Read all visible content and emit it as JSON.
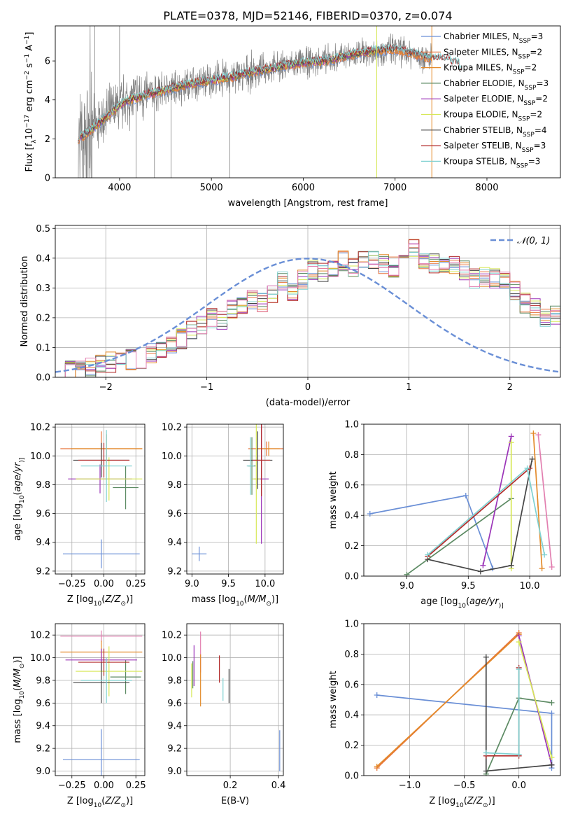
{
  "title": "PLATE=0378, MJD=52146, FIBERID=0370, z=0.074",
  "colors": {
    "Chabrier MILES": "#6a8fd6",
    "Salpeter MILES": "#e8743b",
    "Kroupa MILES": "#e38a2a",
    "Chabrier ELODIE": "#5c8a63",
    "Salpeter ELODIE": "#9b34b8",
    "Kroupa ELODIE": "#d7e857",
    "Chabrier STELIB": "#454545",
    "Salpeter STELIB": "#b22b2b",
    "Kroupa STELIB": "#7fd1d1",
    "data": "#808080",
    "pink": "#e27fb0"
  },
  "chart_data": [
    {
      "id": "spectrum",
      "type": "line",
      "title": "PLATE=0378, MJD=52146, FIBERID=0370, z=0.074",
      "xlabel": "wavelength [Angstrom, rest frame]",
      "ylabel_parts": [
        "Flux [f",
        "λ",
        "10",
        "−17",
        " erg cm",
        "−2",
        " s",
        "−1",
        " A",
        "−1",
        "]"
      ],
      "xlim": [
        3300,
        8800
      ],
      "ylim": [
        0,
        7.8
      ],
      "xticks": [
        4000,
        5000,
        6000,
        7000,
        8000
      ],
      "yticks": [
        0,
        2,
        4,
        6
      ],
      "legend": [
        {
          "name": "Chabrier MILES",
          "sub": "SSP",
          "n": "3"
        },
        {
          "name": "Salpeter MILES",
          "sub": "SSP",
          "n": "2"
        },
        {
          "name": "Kroupa MILES",
          "sub": "SSP",
          "n": "2"
        },
        {
          "name": "Chabrier ELODIE",
          "sub": "SSP",
          "n": "3"
        },
        {
          "name": "Salpeter ELODIE",
          "sub": "SSP",
          "n": "2"
        },
        {
          "name": "Kroupa ELODIE",
          "sub": "SSP",
          "n": "2"
        },
        {
          "name": "Chabrier STELIB",
          "sub": "SSP",
          "n": "4"
        },
        {
          "name": "Salpeter STELIB",
          "sub": "SSP",
          "n": "3"
        },
        {
          "name": "Kroupa STELIB",
          "sub": "SSP",
          "n": "3"
        }
      ],
      "continuum": [
        [
          3550,
          2.0
        ],
        [
          3650,
          2.3
        ],
        [
          3750,
          2.7
        ],
        [
          3850,
          3.1
        ],
        [
          3950,
          3.5
        ],
        [
          4050,
          3.9
        ],
        [
          4250,
          4.2
        ],
        [
          4500,
          4.5
        ],
        [
          4750,
          4.8
        ],
        [
          5000,
          5.0
        ],
        [
          5250,
          5.2
        ],
        [
          5500,
          5.5
        ],
        [
          5750,
          5.7
        ],
        [
          6000,
          5.9
        ],
        [
          6250,
          6.0
        ],
        [
          6500,
          6.3
        ],
        [
          6750,
          6.5
        ],
        [
          7000,
          6.6
        ],
        [
          7250,
          6.3
        ],
        [
          7400,
          6.1
        ]
      ],
      "model_end": [
        [
          7400,
          6.1
        ],
        [
          7600,
          5.9
        ],
        [
          7700,
          5.5
        ],
        [
          7720,
          4.9
        ]
      ]
    },
    {
      "id": "residuals",
      "type": "histogram",
      "xlabel": "(data-model)/error",
      "ylabel": "Normed distribution",
      "xlim": [
        -2.5,
        2.5
      ],
      "ylim": [
        0,
        0.51
      ],
      "xticks": [
        -2,
        -1,
        0,
        1,
        2
      ],
      "yticks": [
        0.0,
        0.1,
        0.2,
        0.3,
        0.4,
        0.5
      ],
      "legend": [
        "𝒩(0, 1)"
      ],
      "bin_width": 0.1,
      "bin_start": -2.5,
      "base": [
        0.02,
        0.02,
        0.03,
        0.03,
        0.04,
        0.05,
        0.05,
        0.06,
        0.06,
        0.08,
        0.09,
        0.11,
        0.13,
        0.16,
        0.17,
        0.2,
        0.19,
        0.23,
        0.24,
        0.26,
        0.25,
        0.28,
        0.32,
        0.29,
        0.33,
        0.36,
        0.35,
        0.36,
        0.39,
        0.37,
        0.39,
        0.4,
        0.38,
        0.37,
        0.38,
        0.43,
        0.39,
        0.38,
        0.37,
        0.38,
        0.36,
        0.33,
        0.34,
        0.33,
        0.32,
        0.29,
        0.25,
        0.23,
        0.2,
        0.21,
        0.18,
        0.16,
        0.15,
        0.14,
        0.12,
        0.11,
        0.09,
        0.08,
        0.07,
        0.07,
        0.06,
        0.05,
        0.05,
        0.04,
        0.04,
        0.03,
        0.03,
        0.02,
        0.02,
        0.02
      ]
    },
    {
      "id": "age-vs-Z",
      "type": "errorbar",
      "xlabel_parts": [
        "Z [log",
        "10",
        "(",
        "Z/Z",
        "⊙",
        ")]"
      ],
      "ylabel_parts": [
        "age  [log",
        "10",
        "(",
        "age/yr",
        ")]"
      ],
      "xlim": [
        -0.38,
        0.32
      ],
      "ylim": [
        9.18,
        10.22
      ],
      "xticks": [
        -0.25,
        0.0,
        0.25
      ],
      "xticklabels": [
        "−0.25",
        "0.00",
        "0.25"
      ],
      "yticks": [
        9.2,
        9.4,
        9.6,
        9.8,
        10.0,
        10.2
      ],
      "points": [
        {
          "c": "Chabrier MILES",
          "x": -0.02,
          "y": 9.32,
          "xerr": 0.3,
          "yerr": 0.1
        },
        {
          "c": "Salpeter MILES",
          "x": -0.02,
          "y": 10.05,
          "xerr": 0.32,
          "yerr": 0.12
        },
        {
          "c": "Kroupa MILES",
          "x": 0.02,
          "y": 10.05,
          "xerr": 0.28,
          "yerr": 0.1
        },
        {
          "c": "Chabrier ELODIE",
          "x": 0.17,
          "y": 9.78,
          "xerr": 0.1,
          "yerr": 0.15
        },
        {
          "c": "Salpeter ELODIE",
          "x": -0.03,
          "y": 9.84,
          "xerr": 0.25,
          "yerr": 0.1
        },
        {
          "c": "Kroupa ELODIE",
          "x": 0.04,
          "y": 9.84,
          "xerr": 0.26,
          "yerr": 0.15
        },
        {
          "c": "Chabrier STELIB",
          "x": -0.02,
          "y": 9.97,
          "xerr": 0.22,
          "yerr": 0.12
        },
        {
          "c": "Salpeter STELIB",
          "x": 0.0,
          "y": 9.97,
          "xerr": 0.2,
          "yerr": 0.12
        },
        {
          "c": "Kroupa STELIB",
          "x": 0.02,
          "y": 9.93,
          "xerr": 0.2,
          "yerr": 0.25
        }
      ]
    },
    {
      "id": "age-vs-mass",
      "type": "errorbar",
      "xlabel_parts": [
        "mass [log",
        "10",
        "(",
        "M/M",
        "⊙",
        ")]"
      ],
      "ylabel": "",
      "xlim": [
        8.93,
        10.25
      ],
      "ylim": [
        9.18,
        10.22
      ],
      "xticks": [
        9.0,
        9.5,
        10.0
      ],
      "xticklabels": [
        "9.0",
        "9.5",
        "10.0"
      ],
      "yticks": [
        9.2,
        9.4,
        9.6,
        9.8,
        10.0,
        10.2
      ],
      "points": [
        {
          "c": "Chabrier MILES",
          "x": 9.1,
          "y": 9.32,
          "xerr": 0.1,
          "yerr": 0.05
        },
        {
          "c": "Salpeter MILES",
          "x": 10.02,
          "y": 10.05,
          "xerr": 0.25,
          "yerr": 0.05
        },
        {
          "c": "Kroupa MILES",
          "x": 10.05,
          "y": 10.05,
          "xerr": 0.15,
          "yerr": 0.05
        },
        {
          "c": "Chabrier ELODIE",
          "x": 9.82,
          "y": 9.93,
          "xerr": 0.05,
          "yerr": 0.2
        },
        {
          "c": "Salpeter ELODIE",
          "x": 9.95,
          "y": 9.84,
          "xerr": 0.1,
          "yerr": 0.45
        },
        {
          "c": "Kroupa ELODIE",
          "x": 9.88,
          "y": 9.84,
          "xerr": 0.05,
          "yerr": 0.45
        },
        {
          "c": "Chabrier STELIB",
          "x": 9.9,
          "y": 9.97,
          "xerr": 0.2,
          "yerr": 0.2
        },
        {
          "c": "Salpeter STELIB",
          "x": 9.95,
          "y": 9.97,
          "xerr": 0.12,
          "yerr": 0.25
        },
        {
          "c": "Kroupa STELIB",
          "x": 9.8,
          "y": 9.93,
          "xerr": 0.05,
          "yerr": 0.2
        }
      ]
    },
    {
      "id": "massweight-vs-age",
      "type": "line",
      "xlabel_parts": [
        "age  [log",
        "10",
        "(",
        "age/yr",
        ")]"
      ],
      "ylabel": "mass weight",
      "xlim": [
        8.65,
        10.25
      ],
      "ylim": [
        0,
        1
      ],
      "xticks": [
        9.0,
        9.5,
        10.0
      ],
      "xticklabels": [
        "9.0",
        "9.5",
        "10.0"
      ],
      "yticks": [
        0.0,
        0.2,
        0.4,
        0.6,
        0.8,
        1.0
      ],
      "series": [
        {
          "c": "Chabrier MILES",
          "x": [
            8.7,
            9.48,
            9.7
          ],
          "y": [
            0.41,
            0.53,
            0.05
          ]
        },
        {
          "c": "Kroupa MILES",
          "x": [
            10.03,
            10.1
          ],
          "y": [
            0.94,
            0.05
          ]
        },
        {
          "c": "pink",
          "x": [
            10.07,
            10.18
          ],
          "y": [
            0.93,
            0.06
          ]
        },
        {
          "c": "Chabrier ELODIE",
          "x": [
            9.0,
            9.85
          ],
          "y": [
            0.01,
            0.51
          ]
        },
        {
          "c": "Salpeter ELODIE",
          "x": [
            9.62,
            9.85
          ],
          "y": [
            0.07,
            0.92
          ]
        },
        {
          "c": "Kroupa ELODIE",
          "x": [
            9.85,
            9.85
          ],
          "y": [
            0.88,
            0.05
          ]
        },
        {
          "c": "Chabrier STELIB",
          "x": [
            9.17,
            9.6,
            9.85,
            10.02
          ],
          "y": [
            0.11,
            0.03,
            0.07,
            0.77
          ]
        },
        {
          "c": "Salpeter STELIB",
          "x": [
            9.17,
            10.0
          ],
          "y": [
            0.13,
            0.71
          ]
        },
        {
          "c": "Kroupa STELIB",
          "x": [
            9.17,
            9.98,
            10.12
          ],
          "y": [
            0.14,
            0.71,
            0.14
          ]
        }
      ]
    },
    {
      "id": "mass-vs-Z",
      "type": "errorbar",
      "xlabel_parts": [
        "Z [log",
        "10",
        "(",
        "Z/Z",
        "⊙",
        ")]"
      ],
      "ylabel_parts": [
        "mass [log",
        "10",
        "(",
        "M/M",
        "⊙",
        ")]"
      ],
      "xlim": [
        -0.38,
        0.32
      ],
      "ylim": [
        8.96,
        10.3
      ],
      "xticks": [
        -0.25,
        0.0,
        0.25
      ],
      "xticklabels": [
        "−0.25",
        "0.00",
        "0.25"
      ],
      "yticks": [
        9.0,
        9.2,
        9.4,
        9.6,
        9.8,
        10.0,
        10.2
      ],
      "points": [
        {
          "c": "Chabrier MILES",
          "x": -0.02,
          "y": 9.1,
          "xerr": 0.3,
          "yerr": 0.27
        },
        {
          "c": "pink",
          "x": -0.02,
          "y": 10.19,
          "xerr": 0.32,
          "yerr": 0.05
        },
        {
          "c": "Kroupa MILES",
          "x": -0.02,
          "y": 10.05,
          "xerr": 0.32,
          "yerr": 0.1
        },
        {
          "c": "Chabrier ELODIE",
          "x": 0.17,
          "y": 9.83,
          "xerr": 0.12,
          "yerr": 0.15
        },
        {
          "c": "Salpeter ELODIE",
          "x": -0.02,
          "y": 9.98,
          "xerr": 0.28,
          "yerr": 0.1
        },
        {
          "c": "Kroupa ELODIE",
          "x": 0.04,
          "y": 9.88,
          "xerr": 0.26,
          "yerr": 0.22
        },
        {
          "c": "Chabrier STELIB",
          "x": -0.02,
          "y": 9.78,
          "xerr": 0.22,
          "yerr": 0.18
        },
        {
          "c": "Salpeter STELIB",
          "x": 0.0,
          "y": 9.96,
          "xerr": 0.2,
          "yerr": 0.12
        },
        {
          "c": "Kroupa STELIB",
          "x": 0.02,
          "y": 9.8,
          "xerr": 0.2,
          "yerr": 0.2
        }
      ]
    },
    {
      "id": "mass-vs-EBV",
      "type": "errorbar",
      "xlabel": "E(B-V)",
      "ylabel": "",
      "xlim": [
        0.02,
        0.42
      ],
      "ylim": [
        8.96,
        10.3
      ],
      "xticks": [
        0.2,
        0.4
      ],
      "xticklabels": [
        "0.2",
        "0.4"
      ],
      "yticks": [
        9.0,
        9.2,
        9.4,
        9.6,
        9.8,
        10.0,
        10.2
      ],
      "points": [
        {
          "c": "Chabrier MILES",
          "x": 0.405,
          "y": 9.18,
          "xerr": 0,
          "yerr": 0.18
        },
        {
          "c": "pink",
          "x": 0.077,
          "y": 10.05,
          "xerr": 0,
          "yerr": 0.18
        },
        {
          "c": "Kroupa MILES",
          "x": 0.077,
          "y": 9.8,
          "xerr": 0,
          "yerr": 0.23
        },
        {
          "c": "Salpeter ELODIE",
          "x": 0.05,
          "y": 9.93,
          "xerr": 0,
          "yerr": 0.18
        },
        {
          "c": "Kroupa ELODIE",
          "x": 0.04,
          "y": 9.8,
          "xerr": 0,
          "yerr": 0.15
        },
        {
          "c": "Chabrier STELIB",
          "x": 0.195,
          "y": 9.75,
          "xerr": 0,
          "yerr": 0.15
        },
        {
          "c": "Salpeter STELIB",
          "x": 0.155,
          "y": 9.9,
          "xerr": 0,
          "yerr": 0.12
        },
        {
          "c": "Kroupa STELIB",
          "x": 0.17,
          "y": 9.72,
          "xerr": 0,
          "yerr": 0.1
        },
        {
          "c": "Chabrier ELODIE",
          "x": 0.045,
          "y": 9.85,
          "xerr": 0,
          "yerr": 0.12
        }
      ]
    },
    {
      "id": "massweight-vs-Z",
      "type": "line",
      "xlabel_parts": [
        "Z [log",
        "10",
        "(",
        "Z/Z",
        "⊙",
        ")]"
      ],
      "ylabel": "mass weight",
      "xlim": [
        -1.42,
        0.38
      ],
      "ylim": [
        0,
        1
      ],
      "xticks": [
        -1.0,
        -0.5,
        0.0
      ],
      "xticklabels": [
        "−1.0",
        "−0.5",
        "0.0"
      ],
      "yticks": [
        0.0,
        0.2,
        0.4,
        0.6,
        0.8,
        1.0
      ],
      "series": [
        {
          "c": "Chabrier MILES",
          "x": [
            -1.3,
            0.3,
            0.3
          ],
          "y": [
            0.53,
            0.41,
            0.05
          ]
        },
        {
          "c": "Salpeter MILES",
          "x": [
            -1.3,
            0.0
          ],
          "y": [
            0.05,
            0.94
          ]
        },
        {
          "c": "Kroupa MILES",
          "x": [
            -1.3,
            0.0
          ],
          "y": [
            0.06,
            0.93
          ]
        },
        {
          "c": "Chabrier ELODIE",
          "x": [
            -0.3,
            0.0,
            0.3
          ],
          "y": [
            0.01,
            0.51,
            0.48
          ]
        },
        {
          "c": "Salpeter ELODIE",
          "x": [
            0.0,
            0.3
          ],
          "y": [
            0.92,
            0.07
          ]
        },
        {
          "c": "Kroupa ELODIE",
          "x": [
            0.0,
            0.3
          ],
          "y": [
            0.88,
            0.12
          ]
        },
        {
          "c": "Chabrier STELIB",
          "x": [
            -0.3,
            -0.3,
            0.3
          ],
          "y": [
            0.78,
            0.03,
            0.07
          ]
        },
        {
          "c": "Salpeter STELIB",
          "x": [
            -0.3,
            0.0,
            0.0
          ],
          "y": [
            0.13,
            0.13,
            0.71
          ]
        },
        {
          "c": "Kroupa STELIB",
          "x": [
            -0.3,
            0.0,
            0.0
          ],
          "y": [
            0.15,
            0.14,
            0.7
          ]
        }
      ]
    }
  ]
}
